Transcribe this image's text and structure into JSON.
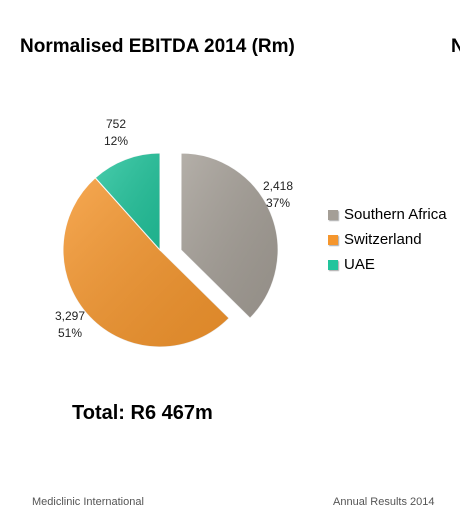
{
  "header": {
    "title": "Normalised EBITDA 2014 (Rm)",
    "edge_glyph": "N"
  },
  "chart_data": {
    "type": "pie",
    "exploded": true,
    "legend_position": "right",
    "slices": [
      {
        "name": "Southern Africa",
        "value": 2418,
        "value_label": "2,418",
        "percent_label": "37%",
        "color": "#a49e96"
      },
      {
        "name": "Switzerland",
        "value": 3297,
        "value_label": "3,297",
        "percent_label": "51%",
        "color": "#f5962d"
      },
      {
        "name": "UAE",
        "value": 752,
        "value_label": "752",
        "percent_label": "12%",
        "color": "#22c49c"
      }
    ]
  },
  "total": "Total: R6 467m",
  "footer": {
    "left": "Mediclinic International",
    "right": "Annual Results 2014"
  }
}
